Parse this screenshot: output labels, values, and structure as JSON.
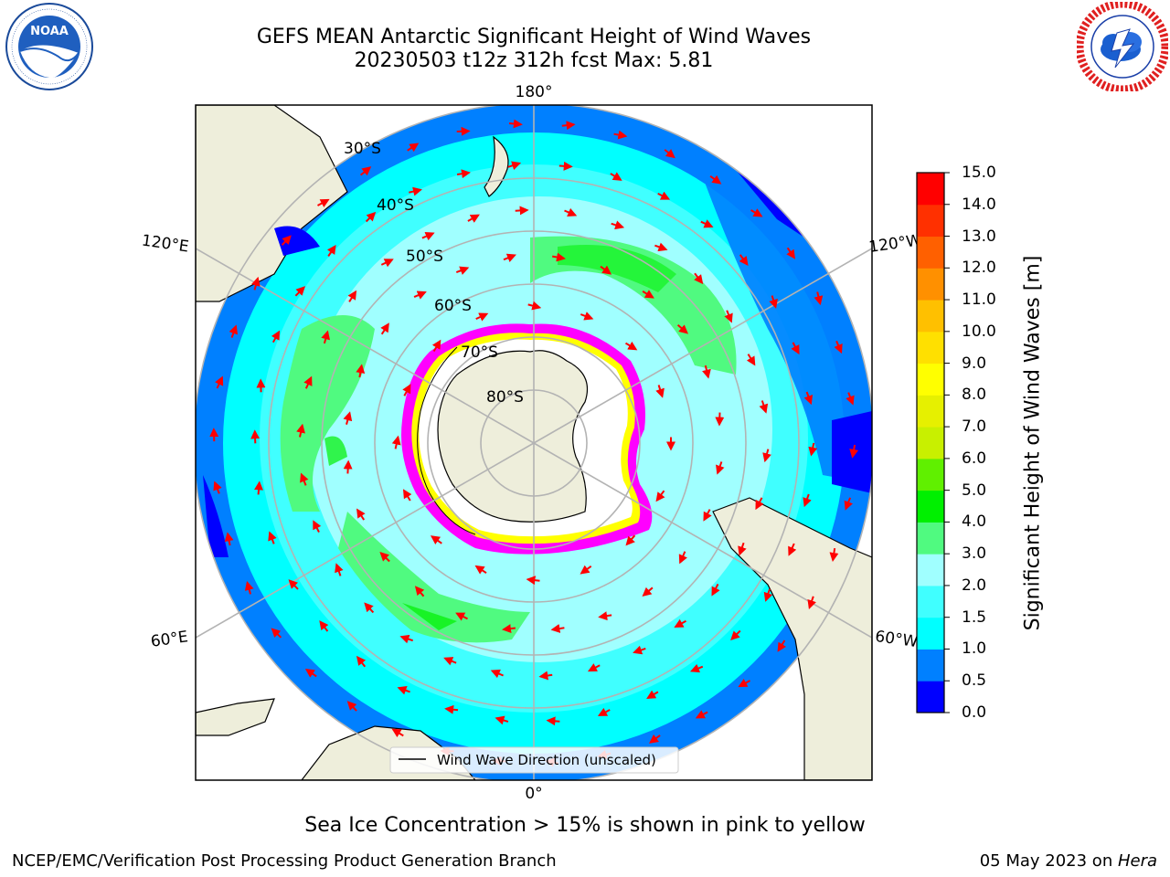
{
  "title": {
    "line1": "GEFS MEAN Antarctic Significant Height of Wind Waves",
    "line2": "20230503 t12z 312h fcst   Max: 5.81"
  },
  "logos": {
    "left": {
      "name": "noaa-logo",
      "text": "NOAA",
      "ring_text": "NATIONAL OCEANIC AND ATMOSPHERIC ADMINISTRATION · U.S. DEPARTMENT OF COMMERCE"
    },
    "right": {
      "name": "national-weather-service-logo",
      "ring_text": "NATIONAL WEATHER SERVICE"
    }
  },
  "map": {
    "projection": "south polar stereographic",
    "longitude_labels": [
      "180°",
      "120°E",
      "120°W",
      "60°E",
      "60°W",
      "0°"
    ],
    "latitude_labels": [
      "30°S",
      "40°S",
      "50°S",
      "60°S",
      "70°S",
      "80°S"
    ],
    "legend": "Wind Wave Direction (unscaled)",
    "max_value": 5.81,
    "colors": {
      "land": "#eeeedb",
      "arrow": "#ff0000",
      "gridline": "#b3b3b3",
      "sea_ice": [
        "#ff00ff",
        "#ffff00"
      ]
    }
  },
  "colorbar": {
    "label": "Significant Height of Wind Waves [m]",
    "ticks": [
      "0.0",
      "0.5",
      "1.0",
      "1.5",
      "2.0",
      "3.0",
      "4.0",
      "5.0",
      "6.0",
      "7.0",
      "8.0",
      "9.0",
      "10.0",
      "11.0",
      "12.0",
      "13.0",
      "14.0",
      "15.0"
    ],
    "colors": [
      "#0000ff",
      "#0080ff",
      "#00ffff",
      "#40ffff",
      "#a0ffff",
      "#50fa80",
      "#00f000",
      "#60f000",
      "#c8f000",
      "#e6f000",
      "#ffff00",
      "#ffe000",
      "#ffc000",
      "#ff9000",
      "#ff6000",
      "#ff3000",
      "#ff0000"
    ]
  },
  "footnote": "Sea Ice Concentration > 15% is shown in pink to yellow",
  "credits": {
    "left": "NCEP/EMC/Verification Post Processing Product Generation Branch",
    "right_date": "05 May 2023 on ",
    "right_host": "Hera"
  }
}
